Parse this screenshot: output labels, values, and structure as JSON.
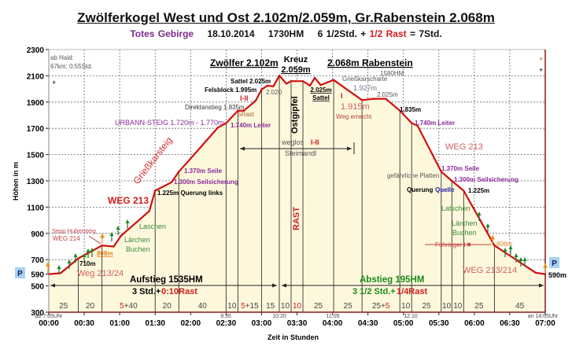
{
  "title": "Zwölferkogel West und Ost 2.102m/2.059m, Gr.Rabenstein 2.068m",
  "subtitle": {
    "region": "Totes Gebirge",
    "date": "18.10.2014",
    "hm": "1730HM",
    "time": "6 1/2Std. +",
    "rast": "1/2 Rast",
    "total": "= 7Std."
  },
  "colors": {
    "profile": "#d01010",
    "fill": "#fdf8dc",
    "purple": "#8a2a9a",
    "red": "#d41c1c",
    "green": "#1a8a1a",
    "orange": "#e89020",
    "p_box": "#a8d0f0"
  },
  "chart_data": {
    "type": "area",
    "xlabel": "Zeit in Stunden",
    "ylabel": "Höhen in m",
    "xlim": [
      "00:00",
      "07:00"
    ],
    "ylim": [
      300,
      2300
    ],
    "grid": true,
    "x_ticks": [
      "00:00",
      "00:30",
      "01:00",
      "01:30",
      "02:00",
      "02:30",
      "03:00",
      "03:30",
      "04:00",
      "04:30",
      "05:00",
      "05:30",
      "06:00",
      "06:30",
      "07:00"
    ],
    "y_ticks": [
      300,
      500,
      590,
      700,
      900,
      1100,
      1300,
      1500,
      1700,
      1900,
      2100,
      2300
    ],
    "series": [
      {
        "x": [
          "00:00",
          "00:10",
          "00:25",
          "00:45",
          "00:55",
          "01:01",
          "01:25",
          "01:30",
          "01:44",
          "01:50",
          "01:59",
          "02:23",
          "02:30",
          "02:40",
          "02:45",
          "02:55",
          "03:00",
          "03:05",
          "03:10",
          "03:15",
          "03:21",
          "03:25",
          "03:35",
          "03:41",
          "03:45",
          "03:50",
          "04:01",
          "04:10",
          "04:25",
          "04:35",
          "04:45",
          "04:57",
          "05:07",
          "05:12",
          "05:32",
          "05:41",
          "05:51",
          "06:17",
          "06:32",
          "06:52",
          "07:00"
        ],
        "y": [
          590,
          597,
          710,
          808,
          800,
          880,
          1070,
          1225,
          1290,
          1370,
          1460,
          1705,
          1740,
          1835,
          1835,
          1910,
          1995,
          2025,
          2020,
          2102,
          2040,
          2059,
          2059,
          2025,
          2085,
          2030,
          2068,
          2010,
          1915,
          1925,
          1925,
          1835,
          1740,
          1720,
          1370,
          1300,
          1225,
          808,
          719,
          600,
          590
        ]
      }
    ],
    "segment_boundaries": [
      "00:00",
      "00:25",
      "00:45",
      "01:30",
      "01:50",
      "02:30",
      "02:40",
      "03:00",
      "03:15",
      "03:25",
      "03:35",
      "04:01",
      "04:25",
      "04:57",
      "05:07",
      "05:32",
      "05:41",
      "05:51",
      "06:17",
      "07:00"
    ],
    "segment_labels": [
      {
        "a": "25"
      },
      {
        "a": "20"
      },
      {
        "r": "5",
        "a": "+40"
      },
      {
        "a": "20"
      },
      {
        "a": "40"
      },
      {
        "a": "10"
      },
      {
        "r": "5",
        "a": "+15"
      },
      {
        "a": "15"
      },
      {
        "a": "10"
      },
      {
        "r": "10"
      },
      {
        "a": "25"
      },
      {
        "a": "25"
      },
      {
        "a": "25+",
        "r": "5"
      },
      {
        "a": "10"
      },
      {
        "a": "25"
      },
      {
        "a": "10"
      },
      {
        "a": "10"
      },
      {
        "a": "25"
      },
      {
        "a": "45"
      }
    ],
    "clock_labels": {
      "start": "ab 7:05Uhr",
      "t1": "9:35",
      "t2": "10:20",
      "t3": "11:05",
      "t4": "12:10",
      "end": "an 14:05Uhr"
    },
    "annotations": {
      "ab_haid": "ab Haid:",
      "km": "67km; 0:55Std.",
      "zwoelfer": "Zwölfer 2.102m",
      "kreuz": "Kreuz",
      "kreuz_h": "2.059m",
      "rabenstein": "2.068m Rabenstein",
      "hm1580": "1580HM",
      "sattel1": "Sattel 2.025m",
      "felsblock": "Felsblock 1.995m",
      "h2020": "2.020",
      "i_ii_1": "I-II",
      "direkt": "Direktanstieg 1.835m",
      "rast5": "5Rast",
      "leiter1": "1.740m Leiter",
      "urbann": "URBANN-STEIG 1.720m - 1.770m",
      "ostgipfel": "Ostgipfel",
      "sattel2_h": "2.025m",
      "sattel2": "Sattel",
      "scharte": "Grießkarscharte",
      "h1927": "1.927m",
      "i": "I",
      "h1915": "1.915m",
      "weg_erreicht": "Weg erreicht",
      "h2025": "2.025m",
      "h1835": "1,835m",
      "leiter2": "1.740m Leiter",
      "weg213r": "WEG 213",
      "weglos": "weglos",
      "i_ii_2": "I-II",
      "steimandl": "Steimandl",
      "griesskarsteig": "Grießkarsteig",
      "seile1": "1.370m Seile",
      "seilsich1": "1.300m Seilsicherung",
      "querung1": "1.225m Querung links",
      "weg213l": "WEG 213",
      "platten": "gefährliche Platten",
      "seile2": "1.370m Seile",
      "seilsich2": "1.300m Seilsicherung",
      "querung2": "Querung",
      "quelle": "Quelle",
      "h1225": "1.225m",
      "rast": "RAST",
      "laschen": "Laschen",
      "laerchen1": "Lärchen",
      "buchen1": "Buchen",
      "sepp": "Sepp Hubersteig",
      "weg214": "WEG 214",
      "h808a": "808m",
      "h710": "710m",
      "weg21324": "Weg 213/24",
      "latschen": "Latschen",
      "laerchen2": "Lärchen",
      "buchen2": "Buchen",
      "fuehringer": "Führinger H",
      "h808b": "808m",
      "weg213214": "WEG 213/214",
      "aufstieg": "Aufstieg 1535HM",
      "auf_time": "3 Std.+",
      "auf_rast": "0:10Rast",
      "abstieg": "Abstieg 195HM",
      "ab_time": "3 1/2 Std.+",
      "ab_rast": "1/4Rast",
      "p_left": "P",
      "p_right": "P",
      "h590": "590m",
      "plus": "+"
    }
  }
}
